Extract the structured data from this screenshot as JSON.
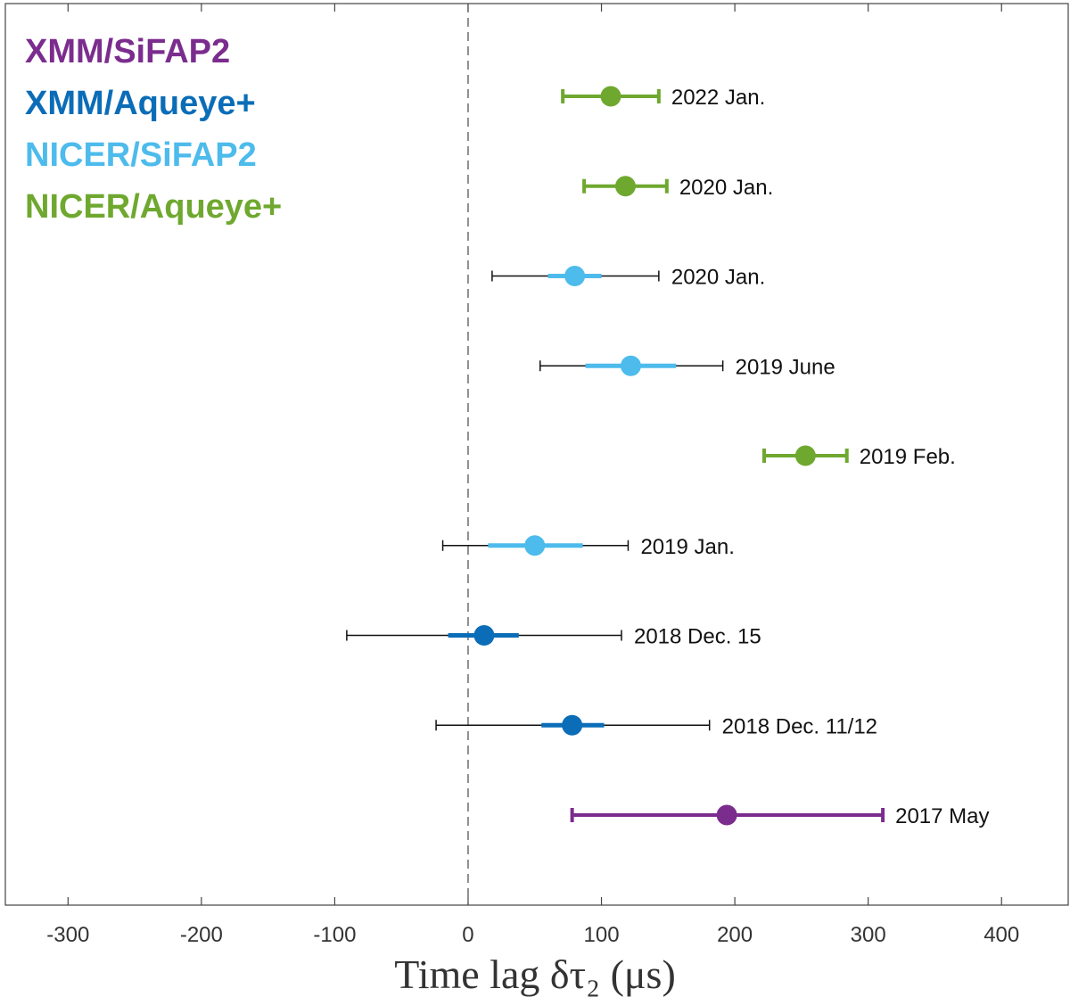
{
  "chart_data": {
    "type": "scatter",
    "xlabel": "Time lag δτ₂ (μs)",
    "xlim": [
      -347,
      450
    ],
    "x_ticks": [
      -300,
      -200,
      -100,
      0,
      100,
      200,
      300,
      400
    ],
    "x_tick_labels": [
      "-300",
      "-200",
      "-100",
      "0",
      "100",
      "200",
      "300",
      "400"
    ],
    "reference_line": {
      "x": 0,
      "style": "dashed"
    },
    "grid": false,
    "legend": {
      "placement": "top-left",
      "entries": [
        {
          "name": "XMM/SiFAP2",
          "color": "#7b2d8e"
        },
        {
          "name": "XMM/Aqueye+",
          "color": "#0b6db7"
        },
        {
          "name": "NICER/SiFAP2",
          "color": "#4dbbec"
        },
        {
          "name": "NICER/Aqueye+",
          "color": "#6fa82f"
        }
      ]
    },
    "points": [
      {
        "label": "2022 Jan.",
        "series": "NICER/Aqueye+",
        "value": 107,
        "err_outer": [
          71,
          143
        ],
        "err_inner": null
      },
      {
        "label": "2020 Jan.",
        "series": "NICER/Aqueye+",
        "value": 118,
        "err_outer": [
          87,
          149
        ],
        "err_inner": null
      },
      {
        "label": "2020 Jan.",
        "series": "NICER/SiFAP2",
        "value": 80,
        "err_outer": [
          18,
          143
        ],
        "err_inner": [
          60,
          100
        ]
      },
      {
        "label": "2019 June",
        "series": "NICER/SiFAP2",
        "value": 122,
        "err_outer": [
          54,
          191
        ],
        "err_inner": [
          88,
          156
        ]
      },
      {
        "label": "2019 Feb.",
        "series": "NICER/Aqueye+",
        "value": 253,
        "err_outer": [
          222,
          284
        ],
        "err_inner": null
      },
      {
        "label": "2019 Jan.",
        "series": "NICER/SiFAP2",
        "value": 50,
        "err_outer": [
          -19,
          120
        ],
        "err_inner": [
          15,
          86
        ]
      },
      {
        "label": "2018 Dec. 15",
        "series": "XMM/Aqueye+",
        "value": 12,
        "err_outer": [
          -91,
          115
        ],
        "err_inner": [
          -15,
          38
        ]
      },
      {
        "label": "2018 Dec. 11/12",
        "series": "XMM/Aqueye+",
        "value": 78,
        "err_outer": [
          -24,
          181
        ],
        "err_inner": [
          55,
          102
        ]
      },
      {
        "label": "2017 May",
        "series": "XMM/SiFAP2",
        "value": 194,
        "err_outer": [
          78,
          311
        ],
        "err_inner": null
      }
    ]
  }
}
